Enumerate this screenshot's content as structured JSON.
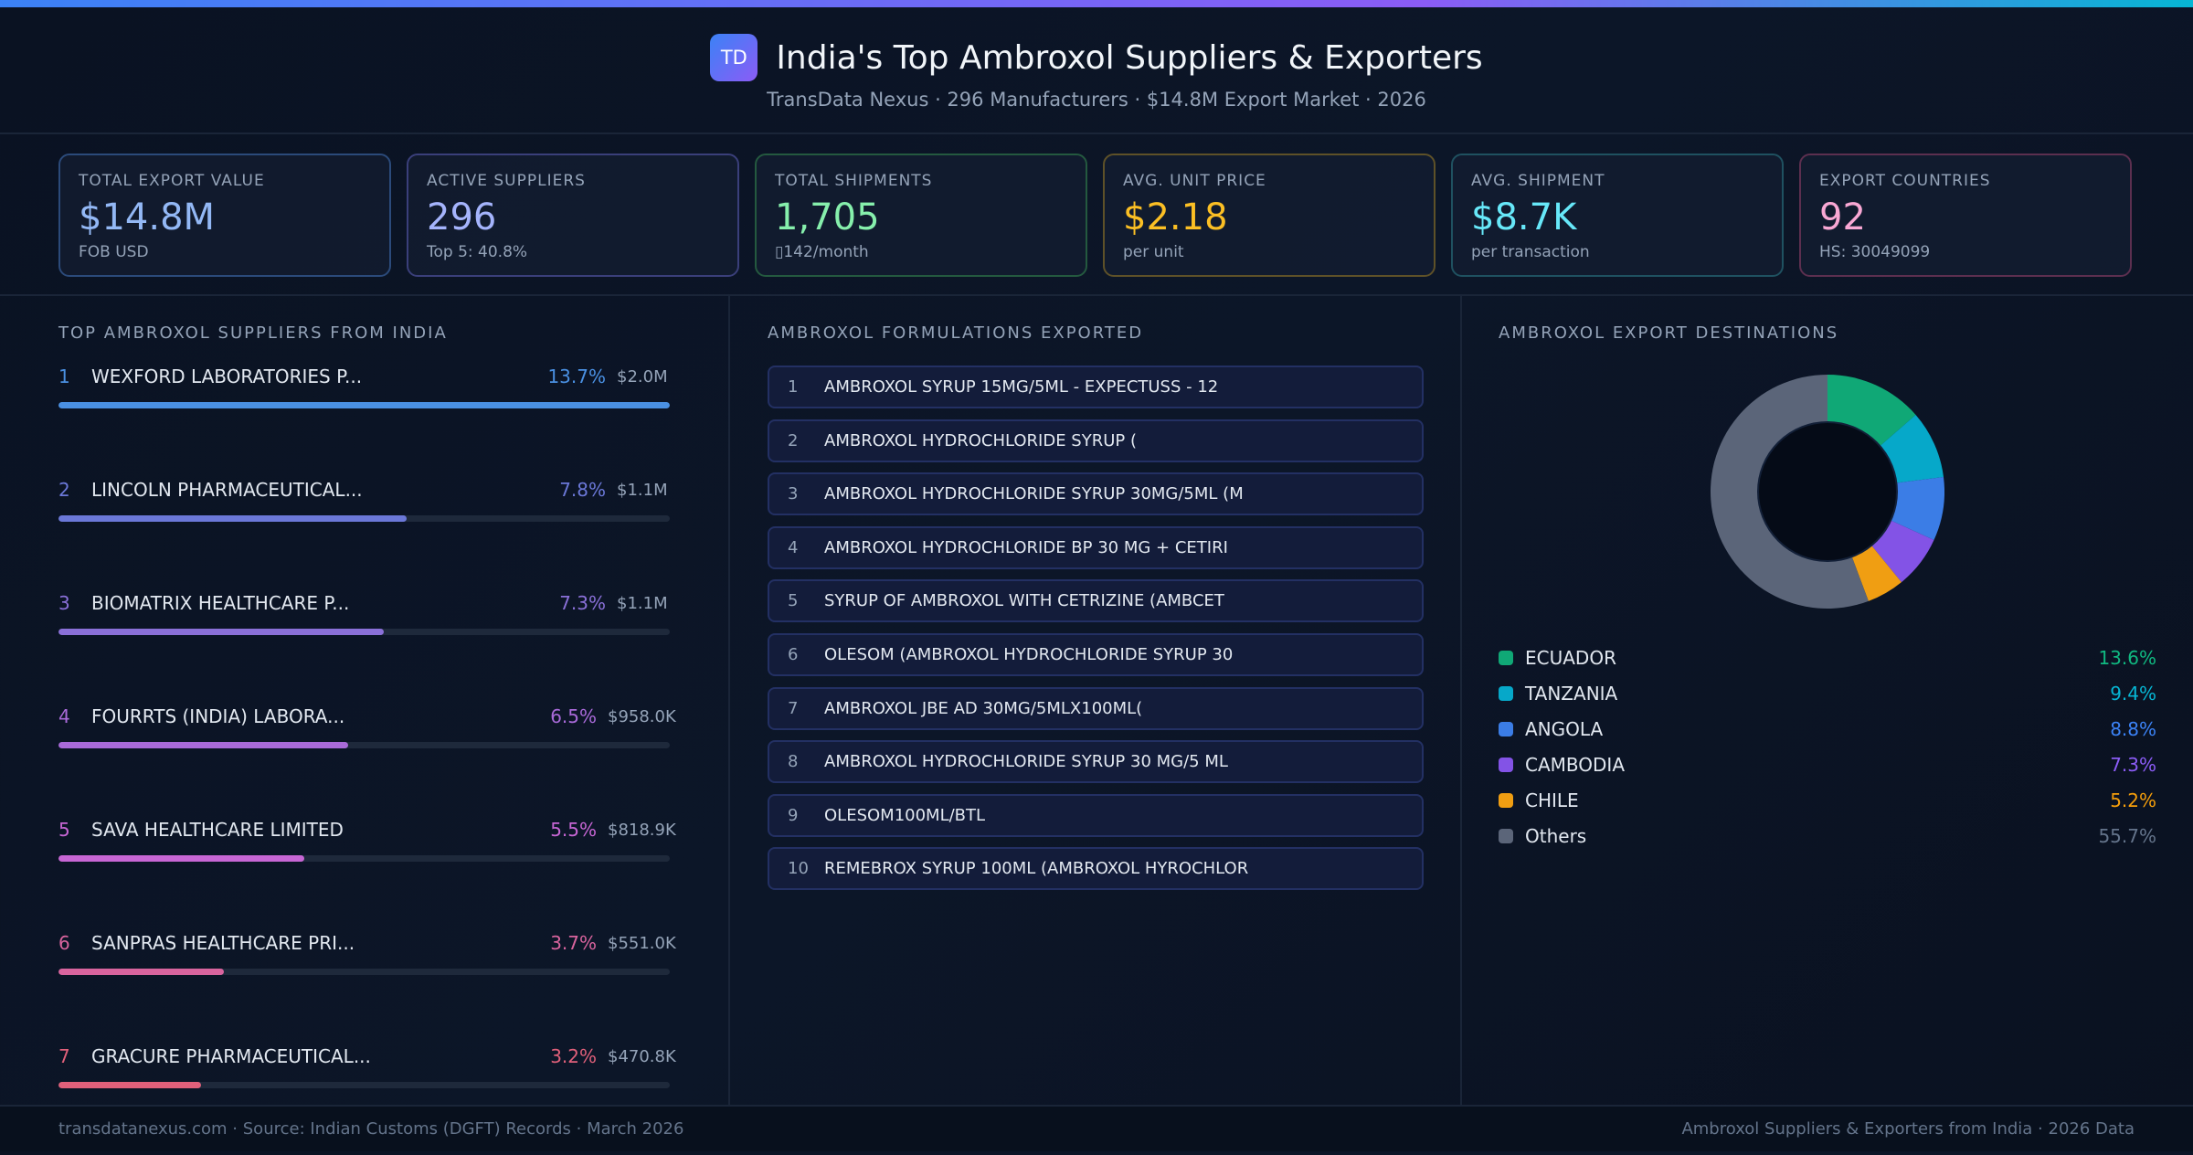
{
  "header": {
    "logo": "TD",
    "title": "India's Top Ambroxol Suppliers & Exporters",
    "subtitle": "TransData Nexus · 296 Manufacturers · $14.8M Export Market · 2026"
  },
  "kpis": [
    {
      "label": "TOTAL EXPORT VALUE",
      "value": "$14.8M",
      "sub": "FOB USD",
      "color": "#93b8f5",
      "border": "#2b4a7a"
    },
    {
      "label": "ACTIVE SUPPLIERS",
      "value": "296",
      "sub": "Top 5: 40.8%",
      "color": "#a5b4fc",
      "border": "#3a3f7a"
    },
    {
      "label": "TOTAL SHIPMENTS",
      "value": "1,705",
      "sub": "▯142/month",
      "color": "#86efac",
      "border": "#24593f"
    },
    {
      "label": "AVG. UNIT PRICE",
      "value": "$2.18",
      "sub": "per unit",
      "color": "#fbbf24",
      "border": "#5e5128"
    },
    {
      "label": "AVG. SHIPMENT",
      "value": "$8.7K",
      "sub": "per transaction",
      "color": "#67e8f9",
      "border": "#1f5160"
    },
    {
      "label": "EXPORT COUNTRIES",
      "value": "92",
      "sub": "HS: 30049099",
      "color": "#f9a8d4",
      "border": "#5c2f4f"
    }
  ],
  "suppliers": {
    "title": "TOP AMBROXOL SUPPLIERS FROM INDIA",
    "items": [
      {
        "rank": "1",
        "name": "WEXFORD LABORATORIES P...",
        "pct": 13.7,
        "pct_label": "13.7%",
        "value": "$2.0M",
        "color": "#4a90e2"
      },
      {
        "rank": "2",
        "name": "LINCOLN PHARMACEUTICAL...",
        "pct": 7.8,
        "pct_label": "7.8%",
        "value": "$1.1M",
        "color": "#6b78d8"
      },
      {
        "rank": "3",
        "name": "BIOMATRIX HEALTHCARE P...",
        "pct": 7.3,
        "pct_label": "7.3%",
        "value": "$1.1M",
        "color": "#8a70d8"
      },
      {
        "rank": "4",
        "name": "FOURRTS (INDIA) LABORA...",
        "pct": 6.5,
        "pct_label": "6.5%",
        "value": "$958.0K",
        "color": "#a96ad9"
      },
      {
        "rank": "5",
        "name": "SAVA HEALTHCARE LIMITED",
        "pct": 5.5,
        "pct_label": "5.5%",
        "value": "$818.9K",
        "color": "#c766d4"
      },
      {
        "rank": "6",
        "name": "SANPRAS HEALTHCARE PRI...",
        "pct": 3.7,
        "pct_label": "3.7%",
        "value": "$551.0K",
        "color": "#d9649e"
      },
      {
        "rank": "7",
        "name": "GRACURE PHARMACEUTICAL...",
        "pct": 3.2,
        "pct_label": "3.2%",
        "value": "$470.8K",
        "color": "#e0607a"
      }
    ]
  },
  "formulations": {
    "title": "AMBROXOL FORMULATIONS EXPORTED",
    "items": [
      {
        "rank": "1",
        "name": "AMBROXOL SYRUP 15MG/5ML - EXPECTUSS - 12"
      },
      {
        "rank": "2",
        "name": "AMBROXOL HYDROCHLORIDE SYRUP ("
      },
      {
        "rank": "3",
        "name": "AMBROXOL HYDROCHLORIDE SYRUP 30MG/5ML (M"
      },
      {
        "rank": "4",
        "name": "AMBROXOL HYDROCHLORIDE BP 30 MG + CETIRI"
      },
      {
        "rank": "5",
        "name": "SYRUP OF AMBROXOL WITH CETRIZINE (AMBCET"
      },
      {
        "rank": "6",
        "name": "OLESOM (AMBROXOL HYDROCHLORIDE SYRUP 30"
      },
      {
        "rank": "7",
        "name": "AMBROXOL JBE AD 30MG/5MLX100ML("
      },
      {
        "rank": "8",
        "name": "AMBROXOL HYDROCHLORIDE SYRUP 30 MG/5 ML"
      },
      {
        "rank": "9",
        "name": "OLESOM100ML/BTL"
      },
      {
        "rank": "10",
        "name": "REMEBROX SYRUP 100ML (AMBROXOL HYROCHLOR"
      }
    ]
  },
  "destinations": {
    "title": "AMBROXOL EXPORT DESTINATIONS",
    "chart_data": {
      "type": "pie",
      "donut": true,
      "categories": [
        "ECUADOR",
        "TANZANIA",
        "ANGOLA",
        "CAMBODIA",
        "CHILE",
        "Others"
      ],
      "values": [
        13.6,
        9.4,
        8.8,
        7.3,
        5.2,
        55.7
      ],
      "labels": [
        "13.6%",
        "9.4%",
        "8.8%",
        "7.3%",
        "5.2%",
        "55.7%"
      ],
      "colors": [
        "#10a876",
        "#06a8c9",
        "#3b7de6",
        "#8353e6",
        "#f09e12",
        "#5b6579"
      ],
      "text_colors": [
        "#10b981",
        "#06b6d4",
        "#3b82f6",
        "#8b5cf6",
        "#f59e0b",
        "#64748b"
      ],
      "legend": "bottom"
    }
  },
  "footer": {
    "left": "transdatanexus.com · Source: Indian Customs (DGFT) Records · March 2026",
    "right": "Ambroxol Suppliers & Exporters from India · 2026 Data"
  }
}
